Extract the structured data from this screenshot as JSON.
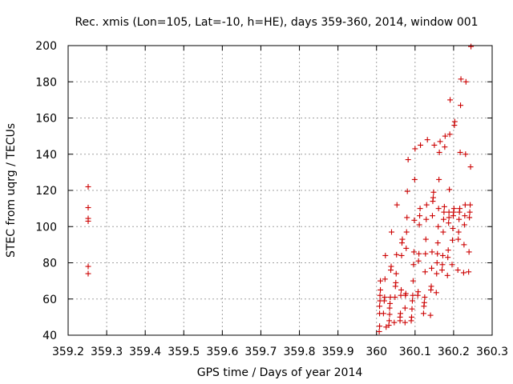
{
  "chart_data": {
    "type": "scatter",
    "title": "Rec. xmis (Lon=105, Lat=-10, h=HE), days 359-360, 2014, window 001",
    "xlabel": "GPS time / Days of year 2014",
    "ylabel": "STEC from uqrg / TECUs",
    "xlim": [
      359.2,
      360.3
    ],
    "ylim": [
      40,
      200
    ],
    "x_ticks": [
      "359.2",
      "359.3",
      "359.4",
      "359.5",
      "359.6",
      "359.7",
      "359.8",
      "359.9",
      "360",
      "360.1",
      "360.2",
      "360.3"
    ],
    "y_ticks": [
      "40",
      "60",
      "80",
      "100",
      "120",
      "140",
      "160",
      "180",
      "200"
    ],
    "grid": true,
    "marker": "+",
    "color": "#cc0000",
    "points": [
      [
        359.252,
        122
      ],
      [
        359.252,
        110.5
      ],
      [
        359.252,
        104.5
      ],
      [
        359.252,
        103
      ],
      [
        359.252,
        78
      ],
      [
        359.252,
        74
      ],
      [
        360.007,
        42
      ],
      [
        360.008,
        45
      ],
      [
        360.008,
        52
      ],
      [
        360.008,
        56
      ],
      [
        360.009,
        59
      ],
      [
        360.009,
        62
      ],
      [
        360.01,
        65
      ],
      [
        360.01,
        70
      ],
      [
        360.018,
        52
      ],
      [
        360.02,
        59
      ],
      [
        360.021,
        61
      ],
      [
        360.022,
        71
      ],
      [
        360.023,
        84
      ],
      [
        360.025,
        44.5
      ],
      [
        360.032,
        45.5
      ],
      [
        360.033,
        48
      ],
      [
        360.034,
        51.5
      ],
      [
        360.034,
        55
      ],
      [
        360.035,
        57.5
      ],
      [
        360.036,
        61
      ],
      [
        360.037,
        76
      ],
      [
        360.038,
        78
      ],
      [
        360.039,
        97
      ],
      [
        360.046,
        47
      ],
      [
        360.048,
        61
      ],
      [
        360.049,
        67
      ],
      [
        360.05,
        69
      ],
      [
        360.051,
        74
      ],
      [
        360.052,
        84.5
      ],
      [
        360.053,
        112
      ],
      [
        360.061,
        48
      ],
      [
        360.061,
        50
      ],
      [
        360.062,
        52
      ],
      [
        360.063,
        62
      ],
      [
        360.064,
        65
      ],
      [
        360.065,
        84
      ],
      [
        360.066,
        91
      ],
      [
        360.067,
        93
      ],
      [
        360.074,
        47
      ],
      [
        360.074,
        55
      ],
      [
        360.075,
        62
      ],
      [
        360.076,
        63
      ],
      [
        360.077,
        88
      ],
      [
        360.078,
        97
      ],
      [
        360.079,
        105
      ],
      [
        360.08,
        119.5
      ],
      [
        360.082,
        137
      ],
      [
        360.09,
        48
      ],
      [
        360.091,
        50
      ],
      [
        360.092,
        54.5
      ],
      [
        360.093,
        59
      ],
      [
        360.094,
        62
      ],
      [
        360.095,
        70
      ],
      [
        360.096,
        79
      ],
      [
        360.097,
        86
      ],
      [
        360.098,
        103.5
      ],
      [
        360.099,
        126
      ],
      [
        360.1,
        143
      ],
      [
        360.107,
        62
      ],
      [
        360.108,
        64
      ],
      [
        360.109,
        81
      ],
      [
        360.11,
        85
      ],
      [
        360.111,
        101
      ],
      [
        360.112,
        106
      ],
      [
        360.113,
        110
      ],
      [
        360.114,
        145
      ],
      [
        360.122,
        52
      ],
      [
        360.123,
        56
      ],
      [
        360.124,
        58
      ],
      [
        360.125,
        61
      ],
      [
        360.126,
        75
      ],
      [
        360.127,
        85
      ],
      [
        360.128,
        93
      ],
      [
        360.129,
        104
      ],
      [
        360.13,
        112
      ],
      [
        360.132,
        148
      ],
      [
        360.14,
        51
      ],
      [
        360.141,
        65
      ],
      [
        360.142,
        67
      ],
      [
        360.143,
        77
      ],
      [
        360.144,
        86
      ],
      [
        360.145,
        106
      ],
      [
        360.146,
        114
      ],
      [
        360.147,
        116
      ],
      [
        360.148,
        119
      ],
      [
        360.15,
        145
      ],
      [
        360.155,
        63.5
      ],
      [
        360.156,
        74
      ],
      [
        360.157,
        80
      ],
      [
        360.158,
        85
      ],
      [
        360.159,
        91
      ],
      [
        360.16,
        100
      ],
      [
        360.161,
        110
      ],
      [
        360.162,
        126
      ],
      [
        360.163,
        141
      ],
      [
        360.165,
        147
      ],
      [
        360.17,
        76
      ],
      [
        360.171,
        79
      ],
      [
        360.172,
        84
      ],
      [
        360.173,
        97
      ],
      [
        360.174,
        104
      ],
      [
        360.175,
        108
      ],
      [
        360.176,
        111
      ],
      [
        360.177,
        144
      ],
      [
        360.178,
        150
      ],
      [
        360.184,
        73
      ],
      [
        360.185,
        83
      ],
      [
        360.186,
        87
      ],
      [
        360.187,
        102
      ],
      [
        360.188,
        105
      ],
      [
        360.188,
        108
      ],
      [
        360.189,
        120.5
      ],
      [
        360.19,
        151
      ],
      [
        360.191,
        170
      ],
      [
        360.196,
        79
      ],
      [
        360.197,
        92.5
      ],
      [
        360.198,
        99
      ],
      [
        360.199,
        106
      ],
      [
        360.2,
        108
      ],
      [
        360.201,
        110
      ],
      [
        360.202,
        156
      ],
      [
        360.203,
        158
      ],
      [
        360.211,
        76
      ],
      [
        360.212,
        93
      ],
      [
        360.213,
        97
      ],
      [
        360.214,
        104
      ],
      [
        360.215,
        108
      ],
      [
        360.216,
        110
      ],
      [
        360.217,
        141
      ],
      [
        360.218,
        167
      ],
      [
        360.219,
        181.5
      ],
      [
        360.226,
        74.5
      ],
      [
        360.227,
        90
      ],
      [
        360.228,
        101
      ],
      [
        360.229,
        106
      ],
      [
        360.23,
        112
      ],
      [
        360.231,
        140
      ],
      [
        360.232,
        180
      ],
      [
        360.239,
        75
      ],
      [
        360.24,
        86
      ],
      [
        360.241,
        105
      ],
      [
        360.242,
        108
      ],
      [
        360.243,
        112
      ],
      [
        360.244,
        133
      ],
      [
        360.245,
        199.5
      ]
    ]
  }
}
